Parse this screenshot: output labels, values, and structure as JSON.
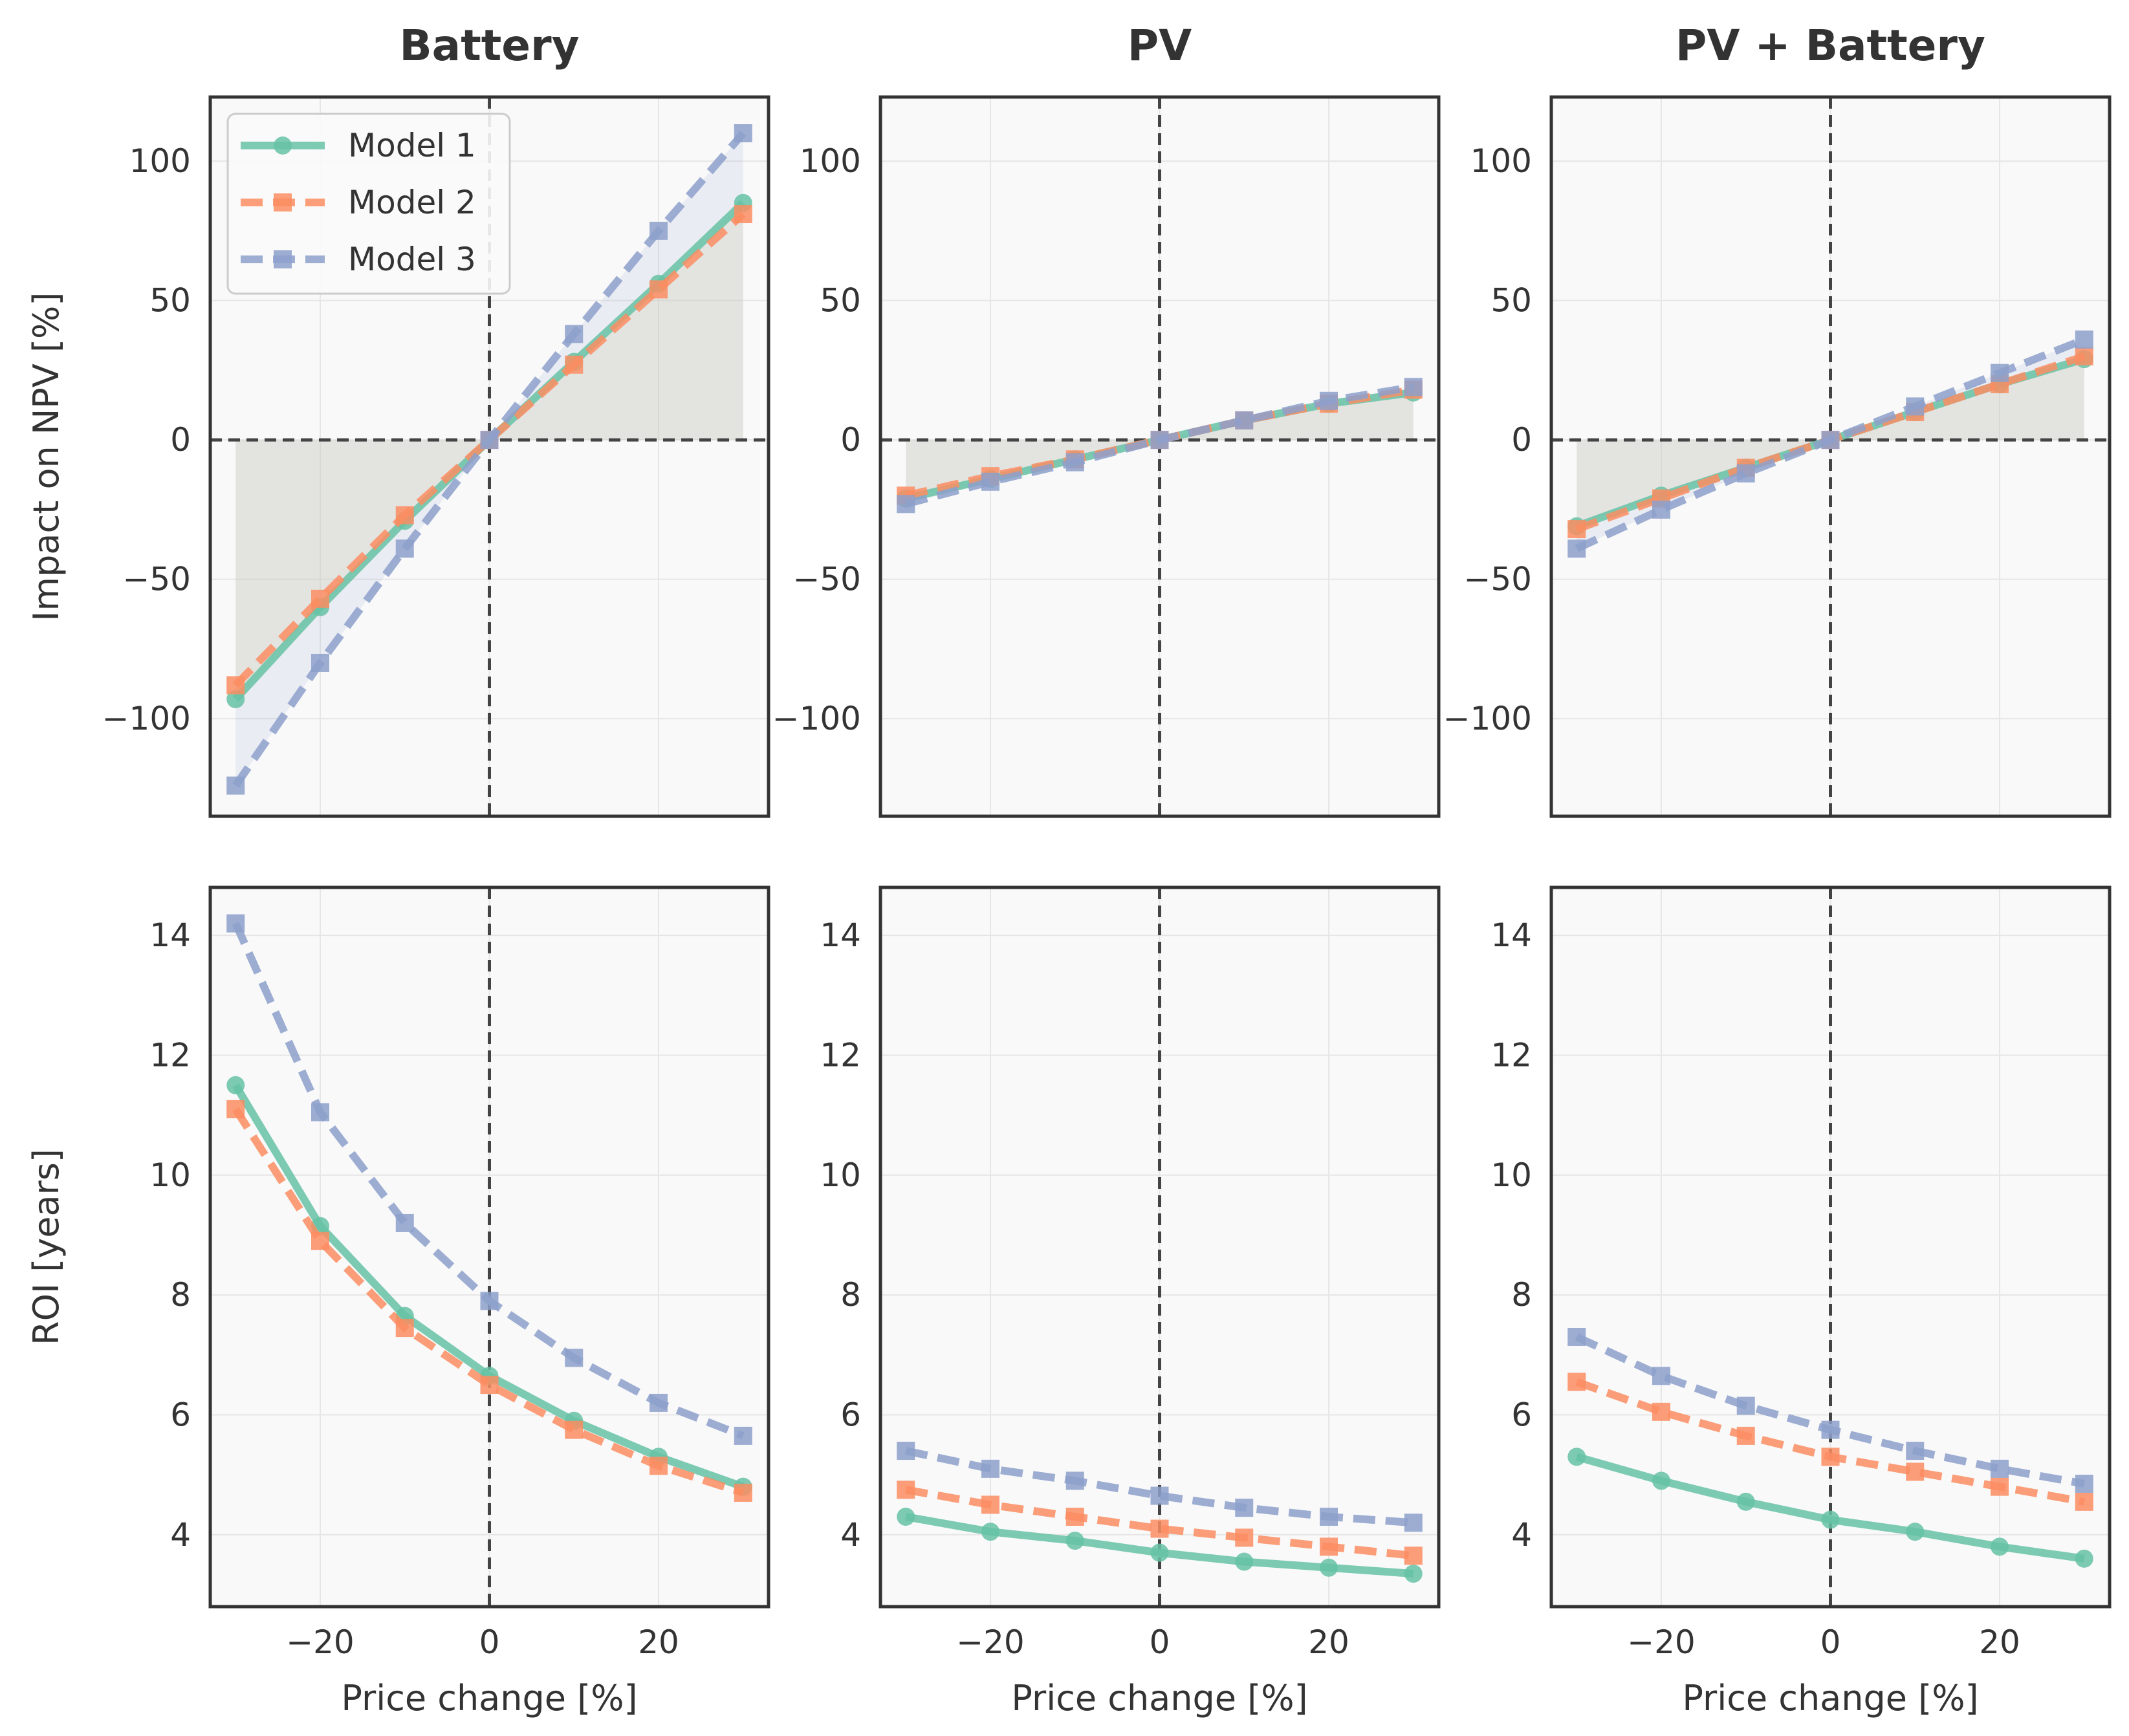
{
  "chart_data": {
    "type": "line",
    "x": [
      -30,
      -20,
      -10,
      0,
      10,
      20,
      30
    ],
    "xlabel": "Price change [%]",
    "xlim": [
      -33,
      33
    ],
    "xticks": [
      -20,
      0,
      20
    ],
    "colors": {
      "Model 1": "#66c2a5",
      "Model 2": "#fc8d62",
      "Model 3": "#8da0cb"
    },
    "legend": {
      "location": "upper-left",
      "entries": [
        "Model 1",
        "Model 2",
        "Model 3"
      ]
    },
    "grid": true,
    "reference_lines": {
      "vertical_x": 0,
      "horizontal_y_top_row": 0
    },
    "columns": [
      "Battery",
      "PV",
      "PV + Battery"
    ],
    "rows": [
      {
        "ylabel": "Impact on NPV [%]",
        "ylim": [
          -135,
          123
        ],
        "yticks": [
          -100,
          -50,
          0,
          50,
          100
        ],
        "shaded_between": [
          "Model 1",
          "Model 3"
        ],
        "panels": [
          {
            "title": "Battery",
            "series": [
              {
                "name": "Model 1",
                "values": [
                  -93,
                  -60,
                  -29,
                  0,
                  28,
                  56,
                  85
                ]
              },
              {
                "name": "Model 2",
                "values": [
                  -88,
                  -57,
                  -27,
                  0,
                  27,
                  54,
                  81
                ]
              },
              {
                "name": "Model 3",
                "values": [
                  -124,
                  -80,
                  -39,
                  0,
                  38,
                  75,
                  110
                ]
              }
            ]
          },
          {
            "title": "PV",
            "series": [
              {
                "name": "Model 1",
                "values": [
                  -21,
                  -14,
                  -7,
                  0,
                  7,
                  13,
                  17
                ]
              },
              {
                "name": "Model 2",
                "values": [
                  -20,
                  -13,
                  -7,
                  0,
                  7,
                  13,
                  18
                ]
              },
              {
                "name": "Model 3",
                "values": [
                  -23,
                  -15,
                  -8,
                  0,
                  7,
                  14,
                  19
                ]
              }
            ]
          },
          {
            "title": "PV + Battery",
            "series": [
              {
                "name": "Model 1",
                "values": [
                  -31,
                  -20,
                  -10,
                  0,
                  10,
                  20,
                  29
                ]
              },
              {
                "name": "Model 2",
                "values": [
                  -32,
                  -21,
                  -10,
                  0,
                  10,
                  20,
                  30
                ]
              },
              {
                "name": "Model 3",
                "values": [
                  -39,
                  -25,
                  -12,
                  0,
                  12,
                  24,
                  36
                ]
              }
            ]
          }
        ]
      },
      {
        "ylabel": "ROI [years]",
        "ylim": [
          2.8,
          14.8
        ],
        "yticks": [
          4,
          6,
          8,
          10,
          12,
          14
        ],
        "panels": [
          {
            "title": "Battery",
            "series": [
              {
                "name": "Model 1",
                "values": [
                  11.5,
                  9.15,
                  7.65,
                  6.65,
                  5.9,
                  5.3,
                  4.8
                ]
              },
              {
                "name": "Model 2",
                "values": [
                  11.1,
                  8.9,
                  7.45,
                  6.5,
                  5.75,
                  5.15,
                  4.7
                ]
              },
              {
                "name": "Model 3",
                "values": [
                  14.2,
                  11.05,
                  9.2,
                  7.9,
                  6.95,
                  6.2,
                  5.65
                ]
              }
            ]
          },
          {
            "title": "PV",
            "series": [
              {
                "name": "Model 1",
                "values": [
                  4.3,
                  4.05,
                  3.9,
                  3.7,
                  3.55,
                  3.45,
                  3.35
                ]
              },
              {
                "name": "Model 2",
                "values": [
                  4.75,
                  4.5,
                  4.3,
                  4.1,
                  3.95,
                  3.8,
                  3.65
                ]
              },
              {
                "name": "Model 3",
                "values": [
                  5.4,
                  5.1,
                  4.9,
                  4.65,
                  4.45,
                  4.3,
                  4.2
                ]
              }
            ]
          },
          {
            "title": "PV + Battery",
            "series": [
              {
                "name": "Model 1",
                "values": [
                  5.3,
                  4.9,
                  4.55,
                  4.25,
                  4.05,
                  3.8,
                  3.6
                ]
              },
              {
                "name": "Model 2",
                "values": [
                  6.55,
                  6.05,
                  5.65,
                  5.3,
                  5.05,
                  4.8,
                  4.55
                ]
              },
              {
                "name": "Model 3",
                "values": [
                  7.3,
                  6.65,
                  6.15,
                  5.75,
                  5.4,
                  5.1,
                  4.85
                ]
              }
            ]
          }
        ]
      }
    ]
  }
}
